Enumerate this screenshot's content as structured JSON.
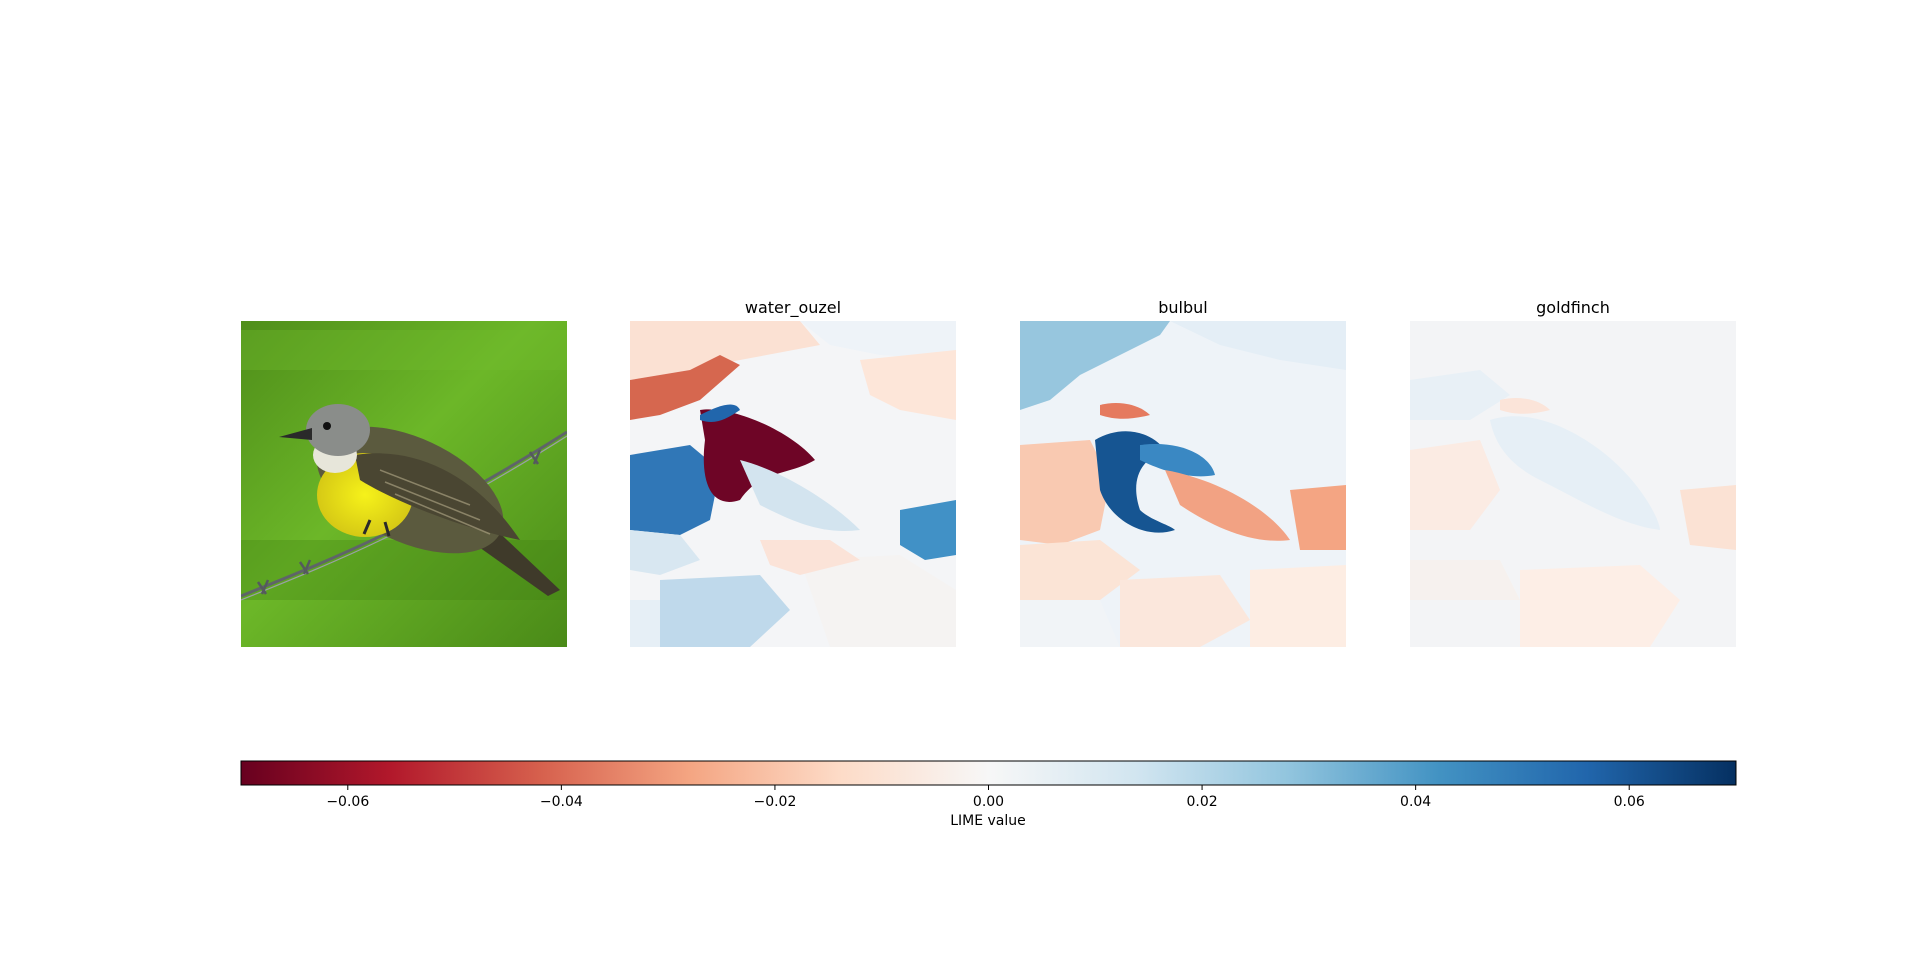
{
  "chart_data": {
    "type": "heatmap",
    "input_image": {
      "subject": "bird perched on barbed wire against green background"
    },
    "panels": [
      {
        "title": "water_ouzel"
      },
      {
        "title": "bulbul"
      },
      {
        "title": "goldfinch"
      }
    ],
    "colorbar": {
      "label": "LIME value",
      "colormap": "RdBu",
      "range": [
        -0.07,
        0.07
      ],
      "ticks": [
        {
          "value": -0.06,
          "label": "−0.06"
        },
        {
          "value": -0.04,
          "label": "−0.04"
        },
        {
          "value": -0.02,
          "label": "−0.02"
        },
        {
          "value": 0.0,
          "label": "0.00"
        },
        {
          "value": 0.02,
          "label": "0.02"
        },
        {
          "value": 0.04,
          "label": "0.04"
        },
        {
          "value": 0.06,
          "label": "0.06"
        }
      ]
    },
    "colors": {
      "strong_negative": "#67001f",
      "negative": "#d6604d",
      "neutral": "#f7f7f7",
      "positive": "#4393c3",
      "strong_positive": "#053061"
    }
  }
}
